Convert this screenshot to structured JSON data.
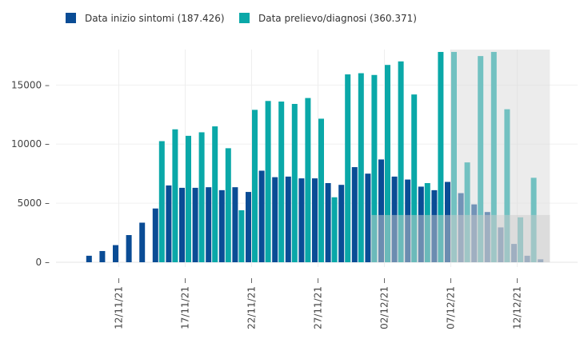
{
  "chart_data": {
    "type": "bar",
    "title": "",
    "xlabel": "",
    "ylabel": "",
    "ylim": [
      0,
      18000
    ],
    "yticks": [
      {
        "value": 0,
        "label": "0"
      },
      {
        "value": 5000,
        "label": "5000"
      },
      {
        "value": 10000,
        "label": "10000"
      },
      {
        "value": 15000,
        "label": "15000"
      }
    ],
    "x_start": "2021-11-09",
    "x_end": "2021-12-15",
    "xticks": [
      {
        "date": "2021-11-12",
        "label": "12/11/21"
      },
      {
        "date": "2021-11-17",
        "label": "17/11/21"
      },
      {
        "date": "2021-11-22",
        "label": "22/11/21"
      },
      {
        "date": "2021-11-27",
        "label": "27/11/21"
      },
      {
        "date": "2021-12-02",
        "label": "02/12/21"
      },
      {
        "date": "2021-12-07",
        "label": "07/12/21"
      },
      {
        "date": "2021-12-12",
        "label": "12/12/21"
      }
    ],
    "grid": true,
    "legend_position": "top-left",
    "series": [
      {
        "name": "Data inizio sintomi (187.426)",
        "color": "#0a4c95",
        "x": [
          "2021-11-10",
          "2021-11-11",
          "2021-11-12",
          "2021-11-13",
          "2021-11-14",
          "2021-11-15",
          "2021-11-16",
          "2021-11-17",
          "2021-11-18",
          "2021-11-19",
          "2021-11-20",
          "2021-11-21",
          "2021-11-22",
          "2021-11-23",
          "2021-11-24",
          "2021-11-25",
          "2021-11-26",
          "2021-11-27",
          "2021-11-28",
          "2021-11-29",
          "2021-11-30",
          "2021-12-01",
          "2021-12-02",
          "2021-12-03",
          "2021-12-04",
          "2021-12-05",
          "2021-12-06",
          "2021-12-07",
          "2021-12-08",
          "2021-12-09",
          "2021-12-10",
          "2021-12-11",
          "2021-12-12",
          "2021-12-13",
          "2021-12-14"
        ],
        "values": [
          550,
          950,
          1450,
          2300,
          3350,
          4550,
          6500,
          6300,
          6300,
          6350,
          6100,
          6350,
          5950,
          7750,
          7200,
          7250,
          7100,
          7100,
          6700,
          6550,
          8050,
          7500,
          8700,
          7250,
          7000,
          6400,
          6100,
          6800,
          5850,
          4900,
          4250,
          2950,
          1550,
          550,
          250
        ]
      },
      {
        "name": "Data prelievo/diagnosi (360.371)",
        "color": "#0aa8a8",
        "x": [
          "2021-11-15",
          "2021-11-16",
          "2021-11-17",
          "2021-11-18",
          "2021-11-19",
          "2021-11-20",
          "2021-11-21",
          "2021-11-22",
          "2021-11-23",
          "2021-11-24",
          "2021-11-25",
          "2021-11-26",
          "2021-11-27",
          "2021-11-28",
          "2021-11-29",
          "2021-11-30",
          "2021-12-01",
          "2021-12-02",
          "2021-12-03",
          "2021-12-04",
          "2021-12-05",
          "2021-12-06",
          "2021-12-07",
          "2021-12-08",
          "2021-12-09",
          "2021-12-10",
          "2021-12-11",
          "2021-12-12",
          "2021-12-13"
        ],
        "values": [
          10250,
          11250,
          10700,
          11000,
          11500,
          9650,
          4400,
          12900,
          13650,
          13600,
          13400,
          13900,
          12150,
          5500,
          15900,
          16000,
          15850,
          16700,
          17000,
          14200,
          6700,
          17800,
          17800,
          8450,
          17450,
          17800,
          12950,
          3800,
          7150
        ]
      }
    ],
    "shaded_regions": [
      {
        "x_from": "2021-12-07",
        "x_to": "2021-12-15",
        "y_from": 0,
        "y_to": 18000,
        "color": "#d9d9d9"
      },
      {
        "x_from": "2021-12-01",
        "x_to": "2021-12-15",
        "y_from": 0,
        "y_to": 4000,
        "color": "#cccccc"
      }
    ]
  }
}
